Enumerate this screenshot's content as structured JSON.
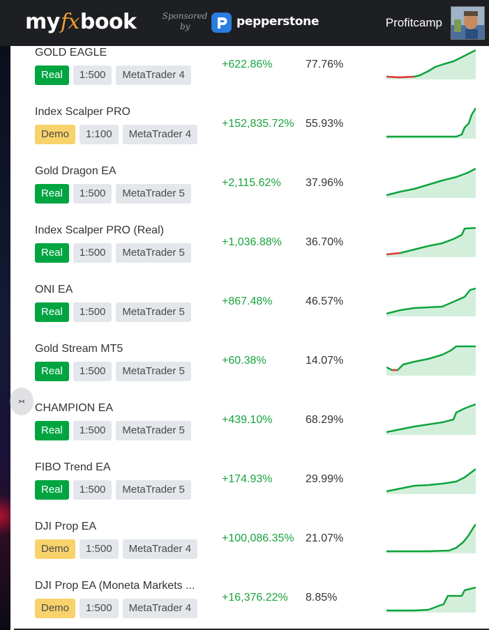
{
  "header": {
    "logo_my": "my",
    "logo_fx": "fx",
    "logo_book": "book",
    "sponsored_line1": "Sponsored",
    "sponsored_line2": "by",
    "sponsor_name": "pepperstone",
    "username": "Profitcamp"
  },
  "colors": {
    "real": "#00a541",
    "demo": "#f8d36b",
    "gain": "#19a33f",
    "spark_line": "#0da33a",
    "spark_fill": "#d3efdc",
    "spark_negative": "#e8393c"
  },
  "systems": [
    {
      "name": "GOLD EAGLE",
      "type": "Real",
      "leverage": "1:500",
      "platform": "MetaTrader 4",
      "gain": "+622.86%",
      "drawdown": "77.76%"
    },
    {
      "name": "Index Scalper PRO",
      "type": "Demo",
      "leverage": "1:100",
      "platform": "MetaTrader 4",
      "gain": "+152,835.72%",
      "drawdown": "55.93%"
    },
    {
      "name": "Gold Dragon EA",
      "type": "Real",
      "leverage": "1:500",
      "platform": "MetaTrader 5",
      "gain": "+2,115.62%",
      "drawdown": "37.96%"
    },
    {
      "name": "Index Scalper PRO (Real)",
      "type": "Real",
      "leverage": "1:500",
      "platform": "MetaTrader 5",
      "gain": "+1,036.88%",
      "drawdown": "36.70%"
    },
    {
      "name": "ONI EA",
      "type": "Real",
      "leverage": "1:500",
      "platform": "MetaTrader 5",
      "gain": "+867.48%",
      "drawdown": "46.57%"
    },
    {
      "name": "Gold Stream MT5",
      "type": "Real",
      "leverage": "1:500",
      "platform": "MetaTrader 5",
      "gain": "+60.38%",
      "drawdown": "14.07%"
    },
    {
      "name": "CHAMPION EA",
      "type": "Real",
      "leverage": "1:500",
      "platform": "MetaTrader 5",
      "gain": "+439.10%",
      "drawdown": "68.29%"
    },
    {
      "name": "FIBO Trend EA",
      "type": "Real",
      "leverage": "1:500",
      "platform": "MetaTrader 5",
      "gain": "+174.93%",
      "drawdown": "29.99%"
    },
    {
      "name": "DJI Prop EA",
      "type": "Demo",
      "leverage": "1:500",
      "platform": "MetaTrader 4",
      "gain": "+100,086.35%",
      "drawdown": "21.07%"
    },
    {
      "name": "DJI Prop EA (Moneta Markets ...",
      "type": "Demo",
      "leverage": "1:500",
      "platform": "MetaTrader 4",
      "gain": "+16,376.22%",
      "drawdown": "8.85%"
    }
  ]
}
